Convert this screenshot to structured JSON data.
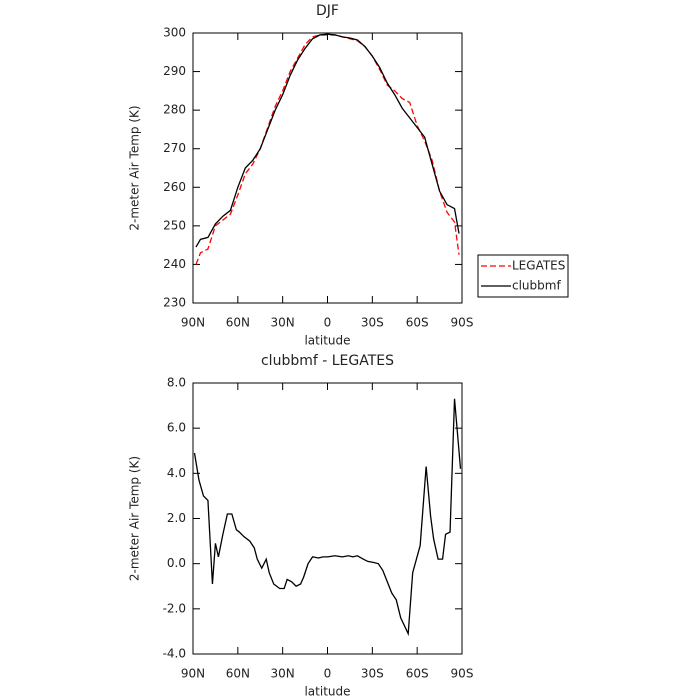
{
  "chart_data": [
    {
      "type": "line",
      "title": "DJF",
      "xlabel": "latitude",
      "ylabel": "2-meter Air Temp (K)",
      "x": [
        88,
        85,
        80,
        75,
        70,
        65,
        60,
        55,
        50,
        45,
        40,
        35,
        30,
        25,
        20,
        15,
        10,
        5,
        0,
        -5,
        -10,
        -15,
        -20,
        -25,
        -30,
        -35,
        -40,
        -45,
        -50,
        -55,
        -60,
        -65,
        -70,
        -75,
        -80,
        -85,
        -88
      ],
      "series": [
        {
          "name": "LEGATES",
          "color": "#ff0000",
          "dash": "dashed",
          "values": [
            240,
            243,
            244,
            250,
            251.5,
            253,
            258,
            263.5,
            266,
            270,
            275.5,
            281,
            285,
            290,
            293.5,
            297,
            299,
            299.5,
            299.5,
            299.5,
            299,
            298.5,
            298,
            296.5,
            294,
            290.5,
            286.5,
            285,
            283,
            282,
            276,
            272,
            267,
            259,
            253.5,
            251,
            242.5
          ]
        },
        {
          "name": "clubbmf",
          "color": "#000000",
          "dash": "solid",
          "values": [
            244.5,
            246.5,
            247,
            250.5,
            252.5,
            254,
            260,
            265,
            267,
            270,
            275,
            280,
            284,
            289,
            293,
            296,
            298.5,
            299.5,
            299.7,
            299.5,
            299,
            298.7,
            298.2,
            296.5,
            294,
            291,
            287,
            284,
            280.5,
            278,
            275.5,
            273,
            266,
            259,
            255.5,
            254.5,
            248
          ]
        }
      ],
      "xlim": [
        90,
        -90
      ],
      "xticks": [
        {
          "value": 90,
          "label": "90N"
        },
        {
          "value": 60,
          "label": "60N"
        },
        {
          "value": 30,
          "label": "30N"
        },
        0,
        {
          "value": -30,
          "label": "30S"
        },
        {
          "value": -60,
          "label": "60S"
        },
        {
          "value": -90,
          "label": "90S"
        }
      ],
      "ylim": [
        230,
        300
      ],
      "yticks": [
        230,
        240,
        250,
        260,
        270,
        280,
        290,
        300
      ],
      "legend": "right"
    },
    {
      "type": "line",
      "title": "clubbmf - LEGATES",
      "xlabel": "latitude",
      "ylabel": "2-meter Air Temp (K)",
      "x": [
        89,
        86,
        83,
        80,
        77,
        75,
        73,
        70,
        67,
        64,
        61,
        59,
        56,
        52,
        49,
        47,
        44,
        41,
        39,
        36,
        32,
        29,
        27,
        24,
        21,
        18,
        16,
        13,
        10,
        6,
        3,
        0,
        -5,
        -10,
        -14,
        -17,
        -20,
        -24,
        -27,
        -31,
        -34,
        -37,
        -40,
        -43,
        -46,
        -49,
        -54,
        -57,
        -62,
        -66,
        -69,
        -71,
        -74,
        -77,
        -79,
        -82,
        -85,
        -89
      ],
      "series": [
        {
          "name": "clubbmf",
          "color": "#000000",
          "values": [
            4.9,
            3.7,
            3.0,
            2.8,
            -0.9,
            0.9,
            0.3,
            1.3,
            2.2,
            2.2,
            1.5,
            1.4,
            1.2,
            1.0,
            0.7,
            0.2,
            -0.2,
            0.2,
            -0.4,
            -0.9,
            -1.1,
            -1.1,
            -0.7,
            -0.8,
            -1.0,
            -0.9,
            -0.6,
            0.0,
            0.3,
            0.25,
            0.3,
            0.3,
            0.35,
            0.3,
            0.35,
            0.3,
            0.35,
            0.2,
            0.1,
            0.05,
            0.0,
            -0.3,
            -0.8,
            -1.3,
            -1.6,
            -2.4,
            -3.1,
            -0.4,
            0.8,
            4.3,
            2.1,
            1.1,
            0.2,
            0.2,
            1.3,
            1.4,
            7.3,
            4.2
          ]
        }
      ],
      "xlim": [
        90,
        -90
      ],
      "xticks": [
        {
          "value": 90,
          "label": "90N"
        },
        {
          "value": 60,
          "label": "60N"
        },
        {
          "value": 30,
          "label": "30N"
        },
        0,
        {
          "value": -30,
          "label": "30S"
        },
        {
          "value": -60,
          "label": "60S"
        },
        {
          "value": -90,
          "label": "90S"
        }
      ],
      "ylim": [
        -4,
        8
      ],
      "yticks": [
        {
          "value": -4,
          "label": "-4.0"
        },
        {
          "value": -2,
          "label": "-2.0"
        },
        {
          "value": 0,
          "label": "0.0"
        },
        {
          "value": 2,
          "label": "2.0"
        },
        {
          "value": 4,
          "label": "4.0"
        },
        {
          "value": 6,
          "label": "6.0"
        },
        {
          "value": 8,
          "label": "8.0"
        }
      ]
    }
  ]
}
